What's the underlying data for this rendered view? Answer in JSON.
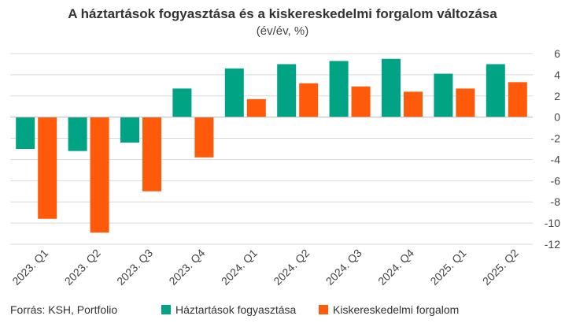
{
  "chart_data": {
    "type": "bar",
    "title": "A háztartások fogyasztása és a kiskereskedelmi forgalom változása",
    "subtitle": "(év/év, %)",
    "categories": [
      "2023. Q1",
      "2023. Q2",
      "2023. Q3",
      "2023. Q4",
      "2024. Q1",
      "2024. Q2",
      "2024. Q3",
      "2024. Q4",
      "2025. Q1",
      "2025. Q2"
    ],
    "series": [
      {
        "name": "Háztartások fogyasztása",
        "color": "#00A383",
        "values": [
          -3.0,
          -3.2,
          -2.4,
          2.7,
          4.6,
          5.0,
          5.3,
          5.5,
          4.1,
          5.0
        ]
      },
      {
        "name": "Kiskereskedelmi forgalom",
        "color": "#FF5A0A",
        "values": [
          -9.6,
          -10.9,
          -7.0,
          -3.8,
          1.7,
          3.2,
          2.9,
          2.4,
          2.7,
          3.3
        ]
      }
    ],
    "ylim": [
      -12,
      6
    ],
    "yticks": [
      6,
      4,
      2,
      0,
      -2,
      -4,
      -6,
      -8,
      -10,
      -12
    ],
    "y_axis_side": "right",
    "grid": true,
    "legend_position": "bottom"
  },
  "source": "Forrás: KSH, Portfolio"
}
